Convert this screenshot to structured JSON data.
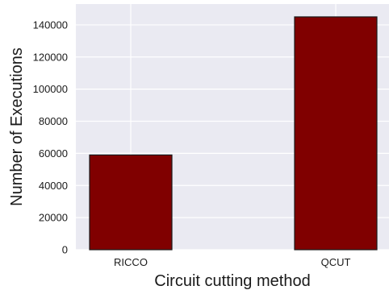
{
  "chart_data": {
    "type": "bar",
    "title": "",
    "xlabel": "Circuit cutting method",
    "ylabel": "Number of Executions",
    "categories": [
      "RICCO",
      "QCUT"
    ],
    "values": [
      59000,
      145000
    ],
    "ylim": [
      0,
      153000
    ],
    "yticks": [
      0,
      20000,
      40000,
      60000,
      80000,
      100000,
      120000,
      140000
    ],
    "ytick_labels": [
      "0",
      "20000",
      "40000",
      "60000",
      "80000",
      "100000",
      "120000",
      "140000"
    ],
    "grid": true,
    "style": {
      "background": "#EAEAF2",
      "grid_color": "#FFFFFF",
      "bar_color": "#800000",
      "bar_edge_color": "#1a1a1a"
    }
  }
}
